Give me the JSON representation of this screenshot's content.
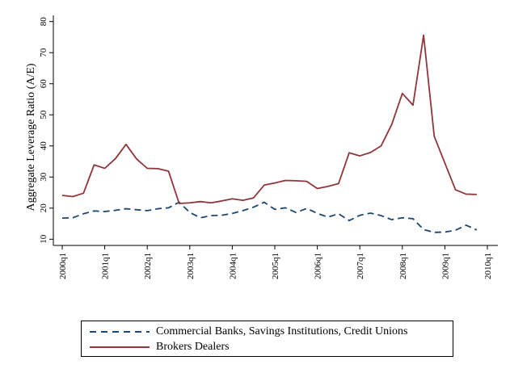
{
  "chart_data": {
    "type": "line",
    "ylabel": "Aggregate Leverage Ratio (A/E)",
    "xlabel": "",
    "ylim": [
      8,
      82
    ],
    "yticks": [
      10,
      20,
      30,
      40,
      50,
      60,
      70,
      80
    ],
    "xticks": [
      "2000q1",
      "2001q1",
      "2002q1",
      "2003q1",
      "2004q1",
      "2005q1",
      "2006q1",
      "2007q1",
      "2008q1",
      "2009q1",
      "2010q1"
    ],
    "x": [
      "2000q1",
      "2000q2",
      "2000q3",
      "2000q4",
      "2001q1",
      "2001q2",
      "2001q3",
      "2001q4",
      "2002q1",
      "2002q2",
      "2002q3",
      "2002q4",
      "2003q1",
      "2003q2",
      "2003q3",
      "2003q4",
      "2004q1",
      "2004q2",
      "2004q3",
      "2004q4",
      "2005q1",
      "2005q2",
      "2005q3",
      "2005q4",
      "2006q1",
      "2006q2",
      "2006q3",
      "2006q4",
      "2007q1",
      "2007q2",
      "2007q3",
      "2007q4",
      "2008q1",
      "2008q2",
      "2008q3",
      "2008q4",
      "2009q1",
      "2009q2",
      "2009q3",
      "2009q4"
    ],
    "grid": false,
    "legend_position": "bottom",
    "series": [
      {
        "name": "Commercial Banks, Savings Institutions, Credit Unions",
        "color": "#1a476f",
        "dash": "dashed",
        "values": [
          16.8,
          16.9,
          18.2,
          19.1,
          18.9,
          19.3,
          19.8,
          19.5,
          19.2,
          19.8,
          20.1,
          21.9,
          18.6,
          16.9,
          17.6,
          17.7,
          18.3,
          19.2,
          20.3,
          21.9,
          19.6,
          20.1,
          18.6,
          19.9,
          18.3,
          17.1,
          18.2,
          16.0,
          17.7,
          18.4,
          17.6,
          16.3,
          16.9,
          16.6,
          13.1,
          12.2,
          12.3,
          12.9,
          14.5,
          13.0
        ]
      },
      {
        "name": "Brokers Dealers",
        "color": "#90353b",
        "dash": "solid",
        "values": [
          24.1,
          23.7,
          24.8,
          33.9,
          32.8,
          35.9,
          40.5,
          35.8,
          32.8,
          32.7,
          31.9,
          21.5,
          21.7,
          22.1,
          21.7,
          22.3,
          23.0,
          22.5,
          23.3,
          27.4,
          28.1,
          28.9,
          28.8,
          28.6,
          26.3,
          27.0,
          27.9,
          37.8,
          36.8,
          37.9,
          40.0,
          46.9,
          56.9,
          53.1,
          75.6,
          43.1,
          34.5,
          25.9,
          24.5,
          24.4
        ]
      }
    ]
  },
  "legend": {
    "items": [
      {
        "label": "Commercial Banks, Savings Institutions, Credit Unions"
      },
      {
        "label": "Brokers Dealers"
      }
    ]
  }
}
